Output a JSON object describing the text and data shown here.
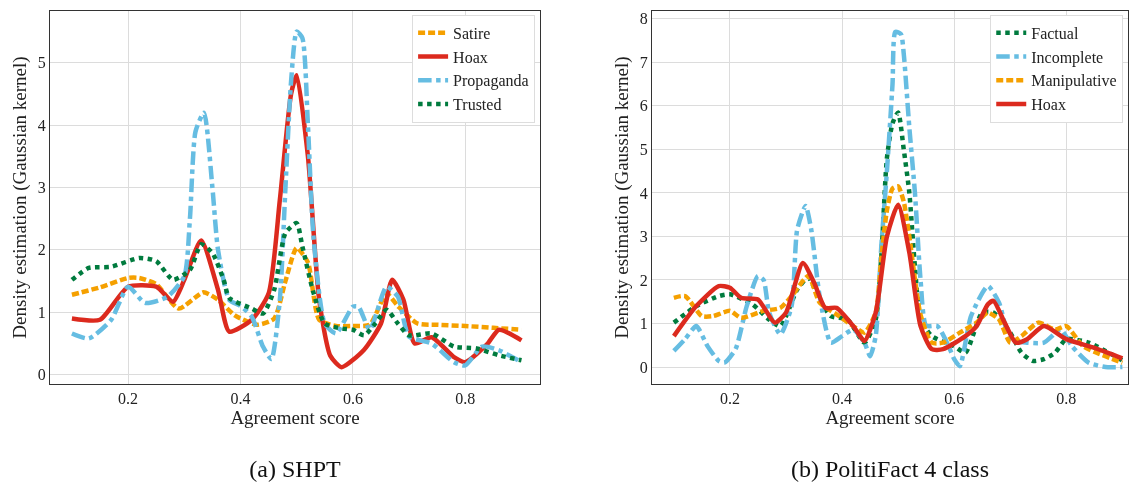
{
  "chart_data": [
    {
      "type": "line",
      "title": "(a) SHPT",
      "xlabel": "Agreement score",
      "ylabel": "Density estimation (Gaussian kernel)",
      "xlim": [
        0.061,
        0.933
      ],
      "xticks": [
        0.2,
        0.4,
        0.6,
        0.8
      ],
      "ylim": [
        -0.15,
        5.83
      ],
      "yticks": [
        0,
        1,
        2,
        3,
        4,
        5
      ],
      "grid": true,
      "legend": "top right",
      "marker": "none",
      "series": [
        {
          "name": "Satire",
          "color": "#f5a000",
          "line_style": "dashed",
          "x": [
            0.1,
            0.15,
            0.2,
            0.22,
            0.25,
            0.29,
            0.334,
            0.36,
            0.39,
            0.43,
            0.46,
            0.48,
            0.5,
            0.52,
            0.54,
            0.57,
            0.6,
            0.63,
            0.66,
            0.68,
            0.715,
            0.75,
            0.8,
            0.85,
            0.9
          ],
          "values": [
            1.28,
            1.4,
            1.55,
            1.55,
            1.45,
            1.06,
            1.32,
            1.2,
            0.95,
            0.8,
            0.9,
            1.5,
            2.03,
            1.8,
            0.88,
            0.78,
            0.78,
            0.8,
            1.3,
            1.1,
            0.82,
            0.8,
            0.78,
            0.75,
            0.72
          ]
        },
        {
          "name": "Hoax",
          "color": "#dc2a1e",
          "line_style": "solid",
          "x": [
            0.1,
            0.15,
            0.2,
            0.25,
            0.28,
            0.3,
            0.33,
            0.36,
            0.38,
            0.42,
            0.45,
            0.47,
            0.49,
            0.5,
            0.52,
            0.54,
            0.56,
            0.58,
            0.62,
            0.65,
            0.67,
            0.69,
            0.71,
            0.74,
            0.78,
            0.8,
            0.84,
            0.86,
            0.9
          ],
          "values": [
            0.9,
            0.88,
            1.41,
            1.41,
            1.17,
            1.52,
            2.15,
            1.36,
            0.69,
            0.88,
            1.3,
            2.8,
            4.5,
            4.8,
            3.5,
            1.2,
            0.3,
            0.12,
            0.4,
            0.82,
            1.52,
            1.2,
            0.5,
            0.6,
            0.28,
            0.2,
            0.5,
            0.72,
            0.55
          ]
        },
        {
          "name": "Propaganda",
          "color": "#66bde2",
          "line_style": "dashdot",
          "x": [
            0.1,
            0.13,
            0.17,
            0.2,
            0.23,
            0.27,
            0.3,
            0.31,
            0.32,
            0.335,
            0.35,
            0.36,
            0.38,
            0.4,
            0.42,
            0.44,
            0.455,
            0.47,
            0.48,
            0.49,
            0.5,
            0.51,
            0.52,
            0.53,
            0.55,
            0.57,
            0.6,
            0.61,
            0.63,
            0.66,
            0.68,
            0.7,
            0.74,
            0.78,
            0.8,
            0.83,
            0.86,
            0.9
          ],
          "values": [
            0.66,
            0.58,
            0.88,
            1.41,
            1.15,
            1.25,
            1.58,
            2.5,
            3.9,
            4.2,
            3.0,
            2.0,
            1.2,
            1.1,
            0.93,
            0.45,
            0.25,
            1.2,
            3.0,
            4.7,
            5.5,
            5.4,
            4.0,
            2.2,
            0.82,
            0.66,
            1.09,
            1.09,
            0.72,
            1.41,
            1.25,
            0.61,
            0.5,
            0.2,
            0.15,
            0.45,
            0.39,
            0.2
          ]
        },
        {
          "name": "Trusted",
          "color": "#007b3e",
          "line_style": "dotted",
          "x": [
            0.1,
            0.13,
            0.17,
            0.22,
            0.25,
            0.28,
            0.31,
            0.33,
            0.35,
            0.37,
            0.38,
            0.42,
            0.44,
            0.46,
            0.48,
            0.5,
            0.51,
            0.53,
            0.55,
            0.58,
            0.6,
            0.62,
            0.64,
            0.66,
            0.68,
            0.7,
            0.74,
            0.78,
            0.82,
            0.86,
            0.9
          ],
          "values": [
            1.52,
            1.71,
            1.73,
            1.87,
            1.82,
            1.52,
            1.68,
            2.09,
            1.95,
            1.52,
            1.23,
            1.06,
            0.98,
            1.36,
            2.27,
            2.43,
            2.06,
            1.31,
            0.82,
            0.74,
            0.72,
            0.63,
            0.82,
            1.04,
            0.82,
            0.63,
            0.66,
            0.45,
            0.42,
            0.31,
            0.23
          ]
        }
      ]
    },
    {
      "type": "line",
      "title": "(b) PolitiFact 4 class",
      "xlabel": "Agreement score",
      "ylabel": "Density estimation (Gaussian kernel)",
      "xlim": [
        0.061,
        0.91
      ],
      "xticks": [
        0.2,
        0.4,
        0.6,
        0.8
      ],
      "ylim": [
        -0.39,
        8.18
      ],
      "yticks": [
        0,
        1,
        2,
        3,
        4,
        5,
        6,
        7,
        8
      ],
      "grid": true,
      "legend": "top right",
      "marker": "none",
      "series": [
        {
          "name": "Factual",
          "color": "#007b3e",
          "line_style": "dotted",
          "x": [
            0.1,
            0.14,
            0.18,
            0.2,
            0.24,
            0.27,
            0.29,
            0.32,
            0.34,
            0.36,
            0.38,
            0.41,
            0.44,
            0.46,
            0.47,
            0.48,
            0.49,
            0.5,
            0.51,
            0.52,
            0.53,
            0.54,
            0.56,
            0.6,
            0.62,
            0.65,
            0.67,
            0.7,
            0.72,
            0.74,
            0.76,
            0.78,
            0.8,
            0.84,
            0.9
          ],
          "values": [
            1.02,
            1.4,
            1.63,
            1.67,
            1.44,
            1.09,
            0.94,
            1.78,
            2.05,
            1.55,
            1.17,
            1.09,
            0.56,
            1.09,
            2.55,
            4.8,
            5.6,
            5.85,
            5.0,
            4.0,
            2.3,
            1.1,
            0.71,
            0.48,
            0.33,
            1.25,
            1.25,
            0.79,
            0.33,
            0.14,
            0.18,
            0.33,
            0.64,
            0.56,
            0.15
          ]
        },
        {
          "name": "Incomplete",
          "color": "#66bde2",
          "line_style": "dashdot",
          "x": [
            0.1,
            0.12,
            0.14,
            0.16,
            0.18,
            0.19,
            0.21,
            0.23,
            0.25,
            0.26,
            0.27,
            0.29,
            0.31,
            0.32,
            0.335,
            0.345,
            0.36,
            0.38,
            0.4,
            0.42,
            0.44,
            0.45,
            0.46,
            0.47,
            0.48,
            0.49,
            0.495,
            0.505,
            0.51,
            0.52,
            0.53,
            0.54,
            0.55,
            0.57,
            0.59,
            0.6,
            0.61,
            0.63,
            0.66,
            0.68,
            0.7,
            0.73,
            0.76,
            0.79,
            0.81,
            0.84,
            0.87,
            0.9
          ],
          "values": [
            0.37,
            0.64,
            0.94,
            0.48,
            0.14,
            0.1,
            0.41,
            1.4,
            2.09,
            2.0,
            1.25,
            0.75,
            1.4,
            3.16,
            3.7,
            3.16,
            1.63,
            0.56,
            0.71,
            0.86,
            0.56,
            0.25,
            0.71,
            2.78,
            4.5,
            6.5,
            7.7,
            7.65,
            7.2,
            5.5,
            4.0,
            2.0,
            0.95,
            0.94,
            0.48,
            0.18,
            0.02,
            1.17,
            1.86,
            1.48,
            0.64,
            0.56,
            0.56,
            0.86,
            0.48,
            0.1,
            0.0,
            0.0
          ]
        },
        {
          "name": "Manipulative",
          "color": "#f5a000",
          "line_style": "dashed",
          "x": [
            0.1,
            0.12,
            0.15,
            0.17,
            0.2,
            0.22,
            0.26,
            0.29,
            0.31,
            0.34,
            0.36,
            0.39,
            0.42,
            0.44,
            0.46,
            0.47,
            0.48,
            0.49,
            0.5,
            0.51,
            0.52,
            0.54,
            0.56,
            0.58,
            0.61,
            0.64,
            0.66,
            0.68,
            0.7,
            0.72,
            0.75,
            0.78,
            0.8,
            0.83,
            0.9
          ],
          "values": [
            1.59,
            1.63,
            1.17,
            1.17,
            1.29,
            1.13,
            1.29,
            1.36,
            1.63,
            2.09,
            1.48,
            1.21,
            0.94,
            0.79,
            1.25,
            2.5,
            3.6,
            4.1,
            4.15,
            3.8,
            3.0,
            1.2,
            0.56,
            0.56,
            0.79,
            1.02,
            1.25,
            1.09,
            0.56,
            0.71,
            1.02,
            0.86,
            0.94,
            0.48,
            0.1
          ]
        },
        {
          "name": "Hoax",
          "color": "#dc2a1e",
          "line_style": "solid",
          "x": [
            0.1,
            0.14,
            0.18,
            0.2,
            0.22,
            0.25,
            0.28,
            0.3,
            0.33,
            0.35,
            0.37,
            0.39,
            0.42,
            0.44,
            0.46,
            0.48,
            0.5,
            0.52,
            0.54,
            0.56,
            0.58,
            0.62,
            0.64,
            0.66,
            0.67,
            0.69,
            0.71,
            0.73,
            0.76,
            0.8,
            0.85,
            0.9
          ],
          "values": [
            0.71,
            1.4,
            1.86,
            1.82,
            1.59,
            1.55,
            1.02,
            1.25,
            2.39,
            1.94,
            1.36,
            1.36,
            0.94,
            0.6,
            1.25,
            3.0,
            3.73,
            2.63,
            0.94,
            0.41,
            0.41,
            0.71,
            0.94,
            1.44,
            1.52,
            1.02,
            0.56,
            0.64,
            0.94,
            0.64,
            0.44,
            0.2
          ]
        }
      ]
    }
  ]
}
